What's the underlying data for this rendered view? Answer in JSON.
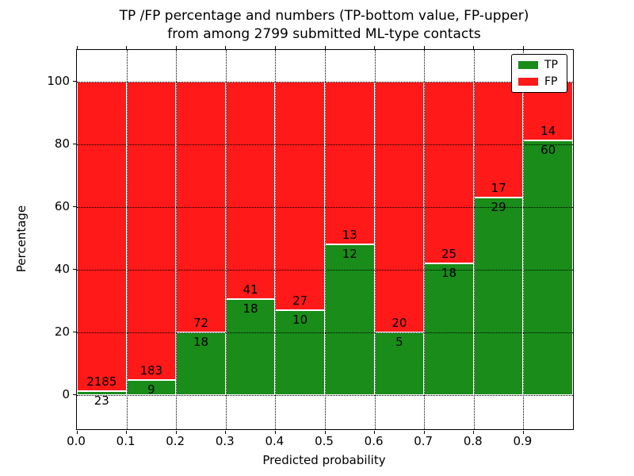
{
  "title": {
    "line1": "TP /FP percentage and numbers (TP-bottom value, FP-upper)",
    "line2": "from among 2799 submitted ML-type contacts"
  },
  "chart_data": {
    "type": "bar",
    "stacked": true,
    "normalized_to_percent": true,
    "title": "TP /FP percentage and numbers (TP-bottom value, FP-upper) from among 2799 submitted ML-type contacts",
    "xlabel": "Predicted probability",
    "ylabel": "Percentage",
    "total_contacts": 2799,
    "xlim": [
      0.0,
      1.0
    ],
    "ylim": [
      -11,
      110
    ],
    "bin_width": 0.1,
    "bin_starts": [
      0.0,
      0.1,
      0.2,
      0.3,
      0.4,
      0.5,
      0.6,
      0.7,
      0.8,
      0.9
    ],
    "x_tick_labels": [
      "0.0",
      "0.1",
      "0.2",
      "0.3",
      "0.4",
      "0.5",
      "0.6",
      "0.7",
      "0.8",
      "0.9"
    ],
    "y_ticks": [
      0,
      20,
      40,
      60,
      80,
      100
    ],
    "y_tick_labels": [
      "0",
      "20",
      "40",
      "60",
      "80",
      "100"
    ],
    "grid": "dotted",
    "series": [
      {
        "name": "TP",
        "color": "#198c19",
        "counts": [
          23,
          9,
          18,
          18,
          10,
          12,
          5,
          18,
          29,
          60
        ]
      },
      {
        "name": "FP",
        "color": "#ff1919",
        "counts": [
          2185,
          183,
          72,
          41,
          27,
          13,
          20,
          25,
          17,
          14
        ]
      }
    ],
    "tp_percent": [
      1.04,
      4.69,
      20.0,
      30.51,
      27.03,
      48.0,
      20.0,
      41.86,
      63.04,
      81.08
    ],
    "legend": {
      "position": "upper right",
      "entries": [
        {
          "label": "TP",
          "color": "#198c19"
        },
        {
          "label": "FP",
          "color": "#ff1919"
        }
      ]
    }
  }
}
